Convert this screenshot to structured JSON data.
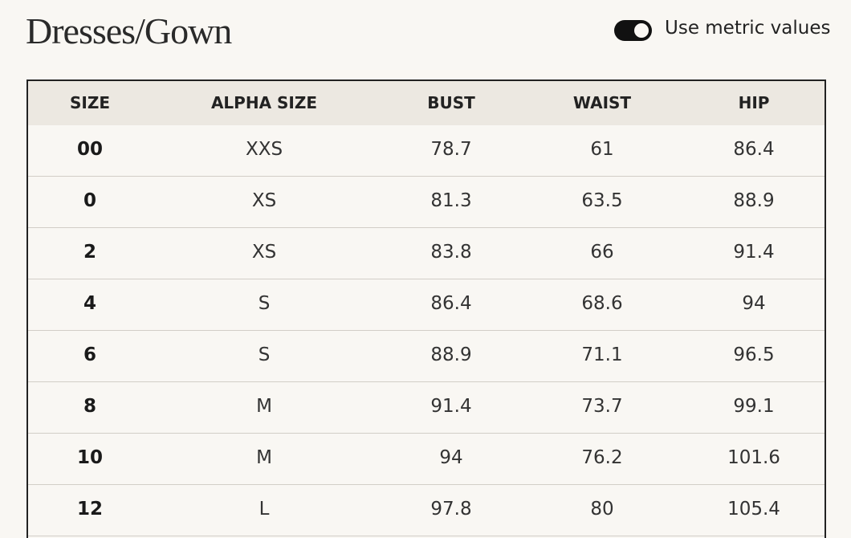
{
  "header": {
    "title": "Dresses/Gown",
    "toggle_label": "Use metric values"
  },
  "table": {
    "columns": [
      "SIZE",
      "ALPHA SIZE",
      "BUST",
      "WAIST",
      "HIP"
    ],
    "rows": [
      [
        "00",
        "XXS",
        "78.7",
        "61",
        "86.4"
      ],
      [
        "0",
        "XS",
        "81.3",
        "63.5",
        "88.9"
      ],
      [
        "2",
        "XS",
        "83.8",
        "66",
        "91.4"
      ],
      [
        "4",
        "S",
        "86.4",
        "68.6",
        "94"
      ],
      [
        "6",
        "S",
        "88.9",
        "71.1",
        "96.5"
      ],
      [
        "8",
        "M",
        "91.4",
        "73.7",
        "99.1"
      ],
      [
        "10",
        "M",
        "94",
        "76.2",
        "101.6"
      ],
      [
        "12",
        "L",
        "97.8",
        "80",
        "105.4"
      ]
    ]
  }
}
